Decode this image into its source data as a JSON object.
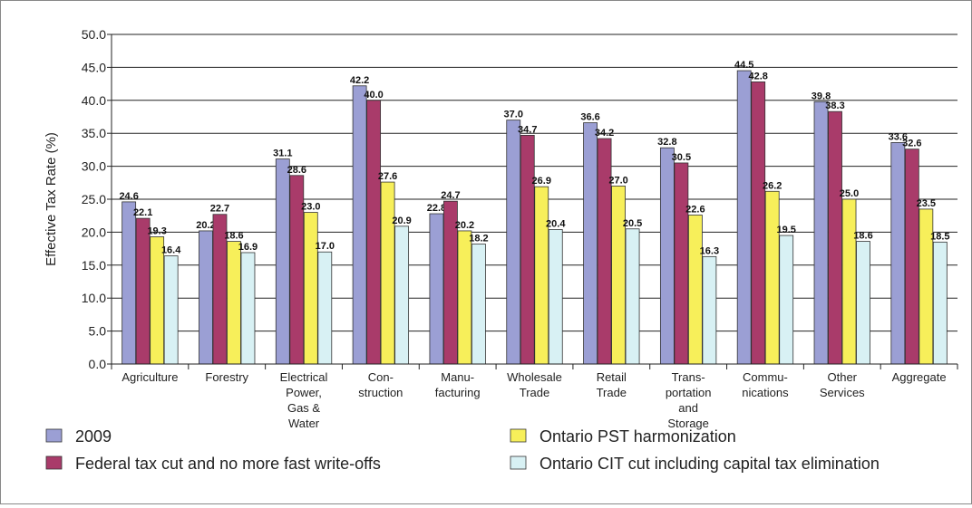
{
  "chart_data": {
    "type": "bar",
    "ylabel": "Effective Tax Rate (%)",
    "ylim": [
      0,
      50
    ],
    "ytick_step": 5,
    "ytick_labels": [
      "0.0",
      "5.0",
      "10.0",
      "15.0",
      "20.0",
      "25.0",
      "30.0",
      "35.0",
      "40.0",
      "45.0",
      "50.0"
    ],
    "grid": true,
    "legend_position": "bottom",
    "categories": [
      [
        "Agriculture"
      ],
      [
        "Forestry"
      ],
      [
        "Electrical",
        "Power,",
        "Gas &",
        "Water"
      ],
      [
        "Con-",
        "struction"
      ],
      [
        "Manu-",
        "facturing"
      ],
      [
        "Wholesale",
        "Trade"
      ],
      [
        "Retail",
        "Trade"
      ],
      [
        "Trans-",
        "portation",
        "and",
        "Storage"
      ],
      [
        "Commu-",
        "nications"
      ],
      [
        "Other",
        "Services"
      ],
      [
        "Aggregate"
      ]
    ],
    "series": [
      {
        "name": "2009",
        "color": "#9b9fd4",
        "values": [
          24.6,
          20.2,
          31.1,
          42.2,
          22.8,
          37.0,
          36.6,
          32.8,
          44.5,
          39.8,
          33.6
        ],
        "labels": [
          "24.6",
          "20.2",
          "31.1",
          "42.2",
          "22.8",
          "37.0",
          "36.6",
          "32.8",
          "44.5",
          "39.8",
          "33.6"
        ]
      },
      {
        "name": "Federal tax cut and no more fast write-offs",
        "color": "#a93b6a",
        "values": [
          22.1,
          22.7,
          28.6,
          40.0,
          24.7,
          34.7,
          34.2,
          30.5,
          42.8,
          38.3,
          32.6
        ],
        "labels": [
          "22.1",
          "22.7",
          "28.6",
          "40.0",
          "24.7",
          "34.7",
          "34.2",
          "30.5",
          "42.8",
          "38.3",
          "32.6"
        ]
      },
      {
        "name": "Ontario PST harmonization",
        "color": "#f7ef5a",
        "values": [
          19.3,
          18.6,
          23.0,
          27.6,
          20.2,
          26.9,
          27.0,
          22.6,
          26.2,
          25.0,
          23.5
        ],
        "labels": [
          "19.3",
          "18.6",
          "23.0",
          "27.6",
          "20.2",
          "26.9",
          "27.0",
          "22.6",
          "26.2",
          "25.0",
          "23.5"
        ]
      },
      {
        "name": "Ontario CIT cut including capital tax elimination",
        "color": "#d8f1f4",
        "values": [
          16.4,
          16.9,
          17.0,
          20.9,
          18.2,
          20.4,
          20.5,
          16.3,
          19.5,
          18.6,
          18.5
        ],
        "labels": [
          "16.4",
          "16.9",
          "17.0",
          "20.9",
          "18.2",
          "20.4",
          "20.5",
          "16.3",
          "19.5",
          "18.6",
          "18.5"
        ]
      }
    ]
  }
}
